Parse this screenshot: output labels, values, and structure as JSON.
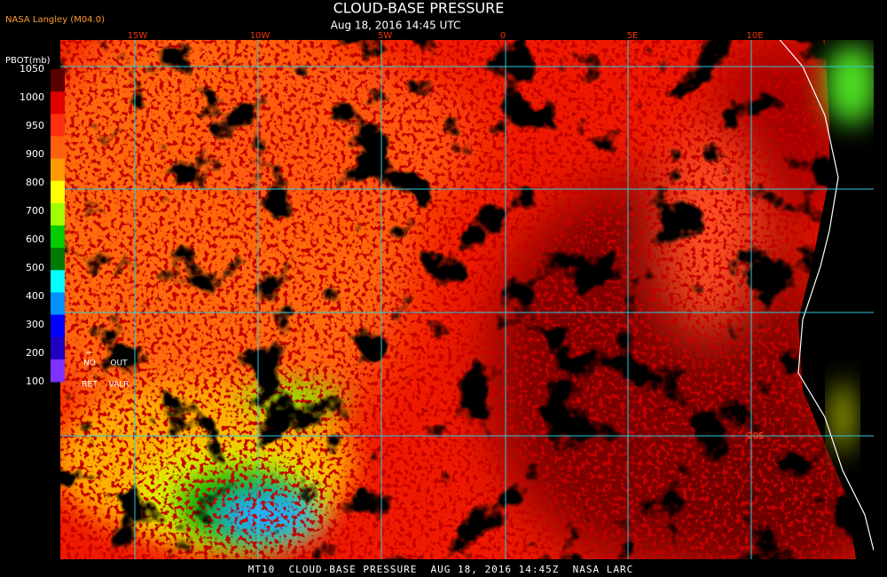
{
  "header": {
    "source": "NASA Langley (M04.0)",
    "title": "CLOUD-BASE PRESSURE",
    "subtitle": "Aug 18, 2016 14:45 UTC"
  },
  "colorbar": {
    "label": "PBOT(mb)",
    "ticks": [
      1050,
      1000,
      950,
      900,
      800,
      700,
      600,
      500,
      400,
      300,
      200,
      100
    ],
    "colors": [
      "#5a0000",
      "#e00000",
      "#ff3010",
      "#ff6010",
      "#ff9900",
      "#ffff00",
      "#a0ff00",
      "#00cc00",
      "#007a00",
      "#00ffff",
      "#0090ff",
      "#0000ff",
      "#2000c0",
      "#8030ff"
    ],
    "no_ret": [
      "NO",
      "RET"
    ],
    "out_valr": [
      "OUT",
      "VALR"
    ]
  },
  "map": {
    "longitude_labels": [
      "15W",
      "10W",
      "5W",
      "0",
      "5E",
      "10E"
    ],
    "latitude_labels": [
      "20S"
    ]
  },
  "footer": "MT10  CLOUD-BASE PRESSURE  AUG 18, 2016 14:45Z  NASA LARC"
}
